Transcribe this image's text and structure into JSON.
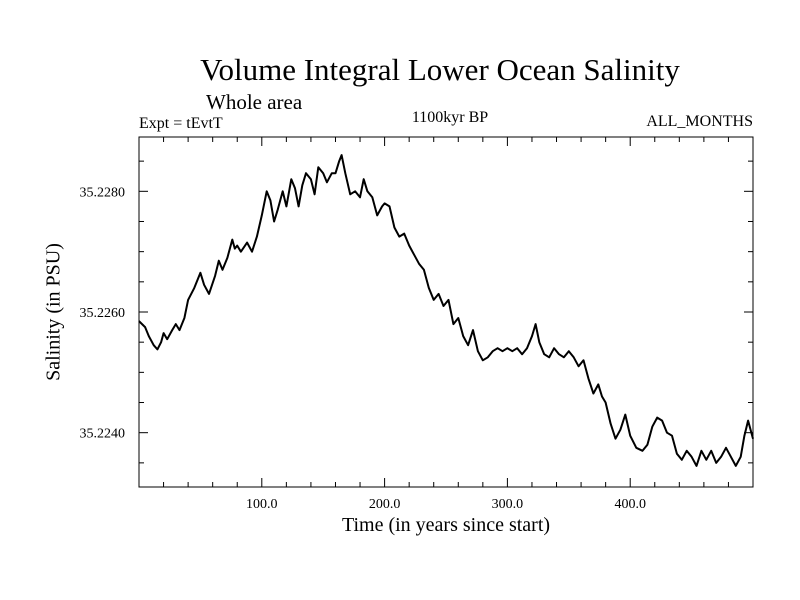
{
  "chart_data": {
    "type": "line",
    "title": "Volume Integral Lower Ocean Salinity",
    "subtitle": "Whole area",
    "experiment": "Expt = tEvtT",
    "period": "1100kyr BP",
    "months": "ALL_MONTHS",
    "xlabel": "Time (in years since start)",
    "ylabel": "Salinity (in PSU)",
    "xlim": [
      0,
      500
    ],
    "ylim": [
      35.2231,
      35.2289
    ],
    "xticks": [
      100,
      200,
      300,
      400
    ],
    "xtick_labels": [
      "100.0",
      "200.0",
      "300.0",
      "400.0"
    ],
    "yticks": [
      35.224,
      35.226,
      35.228
    ],
    "ytick_labels": [
      "35.2240",
      "35.2260",
      "35.2280"
    ],
    "series": [
      {
        "name": "Salinity",
        "x": [
          0,
          5,
          8,
          12,
          15,
          18,
          20,
          23,
          27,
          30,
          33,
          37,
          40,
          45,
          50,
          53,
          57,
          62,
          65,
          68,
          72,
          76,
          78,
          80,
          83,
          88,
          92,
          96,
          100,
          104,
          107,
          110,
          113,
          117,
          120,
          124,
          127,
          130,
          133,
          136,
          140,
          143,
          146,
          150,
          153,
          157,
          160,
          163,
          165,
          168,
          172,
          176,
          180,
          183,
          186,
          190,
          194,
          198,
          200,
          204,
          208,
          212,
          216,
          220,
          224,
          228,
          232,
          236,
          240,
          244,
          248,
          252,
          256,
          260,
          264,
          268,
          272,
          276,
          280,
          284,
          288,
          292,
          296,
          300,
          304,
          308,
          312,
          316,
          320,
          323,
          326,
          330,
          334,
          338,
          342,
          346,
          350,
          354,
          358,
          362,
          366,
          370,
          374,
          377,
          380,
          384,
          388,
          392,
          396,
          400,
          405,
          410,
          414,
          418,
          422,
          426,
          430,
          434,
          438,
          442,
          446,
          450,
          454,
          458,
          462,
          466,
          470,
          474,
          478,
          482,
          486,
          490,
          493,
          496,
          500
        ],
        "values": [
          35.22585,
          35.22575,
          35.2256,
          35.22545,
          35.22538,
          35.2255,
          35.22565,
          35.22555,
          35.2257,
          35.2258,
          35.2257,
          35.2259,
          35.2262,
          35.2264,
          35.22665,
          35.22645,
          35.2263,
          35.2266,
          35.22685,
          35.2267,
          35.2269,
          35.2272,
          35.22705,
          35.2271,
          35.227,
          35.22715,
          35.227,
          35.22725,
          35.2276,
          35.228,
          35.22785,
          35.2275,
          35.2277,
          35.228,
          35.22775,
          35.2282,
          35.22805,
          35.22775,
          35.2281,
          35.2283,
          35.2282,
          35.22795,
          35.2284,
          35.2283,
          35.22815,
          35.2283,
          35.2283,
          35.2285,
          35.2286,
          35.2283,
          35.22795,
          35.228,
          35.2279,
          35.2282,
          35.228,
          35.2279,
          35.2276,
          35.22775,
          35.2278,
          35.22775,
          35.2274,
          35.22725,
          35.2273,
          35.2271,
          35.22695,
          35.2268,
          35.2267,
          35.2264,
          35.2262,
          35.2263,
          35.2261,
          35.2262,
          35.2258,
          35.2259,
          35.2256,
          35.22545,
          35.2257,
          35.22535,
          35.2252,
          35.22525,
          35.22535,
          35.2254,
          35.22535,
          35.2254,
          35.22535,
          35.2254,
          35.2253,
          35.2254,
          35.2256,
          35.2258,
          35.2255,
          35.2253,
          35.22525,
          35.2254,
          35.2253,
          35.22525,
          35.22535,
          35.22525,
          35.2251,
          35.2252,
          35.2249,
          35.22465,
          35.2248,
          35.2246,
          35.2245,
          35.22415,
          35.2239,
          35.22405,
          35.2243,
          35.22395,
          35.22375,
          35.2237,
          35.2238,
          35.2241,
          35.22425,
          35.2242,
          35.224,
          35.22395,
          35.22365,
          35.22355,
          35.2237,
          35.2236,
          35.22345,
          35.2237,
          35.22355,
          35.2237,
          35.2235,
          35.2236,
          35.22375,
          35.2236,
          35.22345,
          35.2236,
          35.22395,
          35.2242,
          35.2239
        ]
      }
    ]
  }
}
